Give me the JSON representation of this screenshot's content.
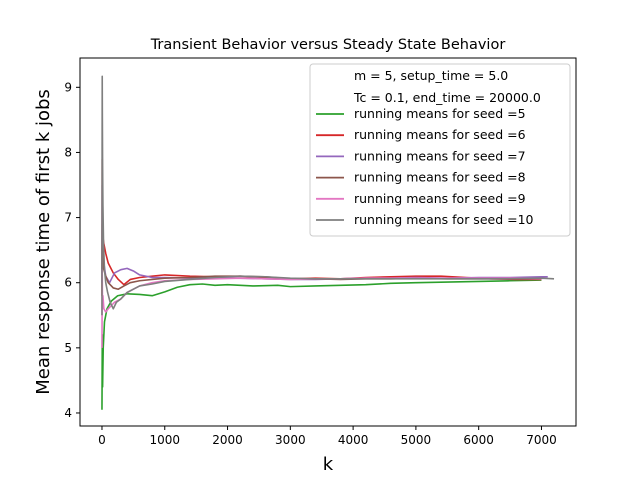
{
  "chart_data": {
    "type": "line",
    "title": "Transient Behavior versus Steady State Behavior",
    "xlabel": "k",
    "ylabel": "Mean response time of first k jobs",
    "xlim": [
      -350,
      7550
    ],
    "ylim": [
      3.8,
      9.45
    ],
    "xticks": [
      0,
      1000,
      2000,
      3000,
      4000,
      5000,
      6000,
      7000
    ],
    "yticks": [
      4,
      5,
      6,
      7,
      8,
      9
    ],
    "grid": false,
    "legend_position": "top-right",
    "legend_header": [
      "m = 5, setup_time = 5.0",
      "Tc = 0.1, end_time = 20000.0"
    ],
    "series": [
      {
        "name": "running means for seed =5",
        "color": "#2ca02c",
        "points": [
          [
            0,
            4.05
          ],
          [
            5,
            5.2
          ],
          [
            10,
            4.4
          ],
          [
            20,
            5.0
          ],
          [
            40,
            5.4
          ],
          [
            80,
            5.6
          ],
          [
            150,
            5.72
          ],
          [
            250,
            5.8
          ],
          [
            400,
            5.83
          ],
          [
            600,
            5.82
          ],
          [
            800,
            5.8
          ],
          [
            1000,
            5.86
          ],
          [
            1200,
            5.93
          ],
          [
            1400,
            5.97
          ],
          [
            1600,
            5.98
          ],
          [
            1800,
            5.96
          ],
          [
            2000,
            5.97
          ],
          [
            2400,
            5.95
          ],
          [
            2800,
            5.96
          ],
          [
            3000,
            5.94
          ],
          [
            3400,
            5.95
          ],
          [
            3800,
            5.96
          ],
          [
            4200,
            5.97
          ],
          [
            4600,
            5.99
          ],
          [
            5000,
            6.0
          ],
          [
            5500,
            6.01
          ],
          [
            6000,
            6.02
          ],
          [
            6500,
            6.03
          ],
          [
            7000,
            6.04
          ]
        ]
      },
      {
        "name": "running means for seed =6",
        "color": "#d62728",
        "points": [
          [
            0,
            5.8
          ],
          [
            4,
            7.9
          ],
          [
            8,
            7.0
          ],
          [
            15,
            6.7
          ],
          [
            30,
            6.6
          ],
          [
            60,
            6.45
          ],
          [
            100,
            6.3
          ],
          [
            180,
            6.15
          ],
          [
            260,
            6.05
          ],
          [
            350,
            5.97
          ],
          [
            450,
            6.05
          ],
          [
            600,
            6.08
          ],
          [
            800,
            6.1
          ],
          [
            1000,
            6.12
          ],
          [
            1400,
            6.1
          ],
          [
            1800,
            6.09
          ],
          [
            2200,
            6.1
          ],
          [
            2600,
            6.08
          ],
          [
            3000,
            6.06
          ],
          [
            3400,
            6.07
          ],
          [
            3800,
            6.06
          ],
          [
            4200,
            6.08
          ],
          [
            4600,
            6.09
          ],
          [
            5000,
            6.1
          ],
          [
            5400,
            6.1
          ],
          [
            5800,
            6.08
          ],
          [
            6200,
            6.06
          ],
          [
            6600,
            6.05
          ],
          [
            7000,
            6.05
          ]
        ]
      },
      {
        "name": "running means for seed =7",
        "color": "#9467bd",
        "points": [
          [
            0,
            6.0
          ],
          [
            4,
            7.5
          ],
          [
            8,
            7.0
          ],
          [
            15,
            6.5
          ],
          [
            30,
            6.3
          ],
          [
            60,
            6.1
          ],
          [
            120,
            6.0
          ],
          [
            200,
            6.15
          ],
          [
            300,
            6.2
          ],
          [
            400,
            6.22
          ],
          [
            500,
            6.18
          ],
          [
            600,
            6.12
          ],
          [
            800,
            6.08
          ],
          [
            1000,
            6.08
          ],
          [
            1400,
            6.07
          ],
          [
            1800,
            6.08
          ],
          [
            2200,
            6.07
          ],
          [
            2600,
            6.06
          ],
          [
            3000,
            6.05
          ],
          [
            3400,
            6.05
          ],
          [
            3800,
            6.06
          ],
          [
            4200,
            6.07
          ],
          [
            4600,
            6.07
          ],
          [
            5000,
            6.08
          ],
          [
            5500,
            6.07
          ],
          [
            6000,
            6.08
          ],
          [
            6500,
            6.08
          ],
          [
            7000,
            6.09
          ],
          [
            7100,
            6.09
          ]
        ]
      },
      {
        "name": "running means for seed =8",
        "color": "#8c564b",
        "points": [
          [
            0,
            6.2
          ],
          [
            4,
            6.9
          ],
          [
            8,
            6.5
          ],
          [
            15,
            6.35
          ],
          [
            30,
            6.2
          ],
          [
            60,
            6.1
          ],
          [
            100,
            6.0
          ],
          [
            180,
            5.92
          ],
          [
            260,
            5.9
          ],
          [
            350,
            5.95
          ],
          [
            450,
            6.0
          ],
          [
            600,
            6.03
          ],
          [
            800,
            6.05
          ],
          [
            1000,
            6.07
          ],
          [
            1400,
            6.08
          ],
          [
            1800,
            6.1
          ],
          [
            2200,
            6.1
          ],
          [
            2600,
            6.09
          ],
          [
            3000,
            6.06
          ],
          [
            3400,
            6.06
          ],
          [
            3800,
            6.05
          ],
          [
            4200,
            6.06
          ],
          [
            4600,
            6.06
          ],
          [
            5000,
            6.07
          ],
          [
            5500,
            6.06
          ],
          [
            6000,
            6.06
          ],
          [
            6500,
            6.06
          ],
          [
            7000,
            6.06
          ]
        ]
      },
      {
        "name": "running means for seed =9",
        "color": "#e377c2",
        "points": [
          [
            0,
            5.0
          ],
          [
            4,
            6.2
          ],
          [
            8,
            5.6
          ],
          [
            15,
            5.8
          ],
          [
            30,
            5.6
          ],
          [
            60,
            5.55
          ],
          [
            100,
            5.6
          ],
          [
            150,
            5.65
          ],
          [
            200,
            5.7
          ],
          [
            300,
            5.75
          ],
          [
            400,
            5.85
          ],
          [
            500,
            5.9
          ],
          [
            600,
            5.95
          ],
          [
            800,
            6.0
          ],
          [
            1000,
            6.03
          ],
          [
            1400,
            6.05
          ],
          [
            1800,
            6.06
          ],
          [
            2200,
            6.07
          ],
          [
            2600,
            6.06
          ],
          [
            3000,
            6.05
          ],
          [
            3400,
            6.06
          ],
          [
            3800,
            6.06
          ],
          [
            4200,
            6.07
          ],
          [
            4600,
            6.07
          ],
          [
            5000,
            6.07
          ],
          [
            5500,
            6.07
          ],
          [
            6000,
            6.07
          ],
          [
            6500,
            6.07
          ],
          [
            7000,
            6.06
          ]
        ]
      },
      {
        "name": "running means for seed =10",
        "color": "#7f7f7f",
        "points": [
          [
            0,
            5.5
          ],
          [
            2,
            8.0
          ],
          [
            4,
            9.17
          ],
          [
            6,
            8.6
          ],
          [
            10,
            7.8
          ],
          [
            15,
            7.2
          ],
          [
            25,
            6.6
          ],
          [
            40,
            6.2
          ],
          [
            60,
            6.0
          ],
          [
            90,
            5.85
          ],
          [
            130,
            5.7
          ],
          [
            180,
            5.6
          ],
          [
            230,
            5.7
          ],
          [
            300,
            5.75
          ],
          [
            400,
            5.85
          ],
          [
            500,
            5.9
          ],
          [
            600,
            5.95
          ],
          [
            800,
            5.98
          ],
          [
            1000,
            6.02
          ],
          [
            1400,
            6.05
          ],
          [
            1800,
            6.08
          ],
          [
            2200,
            6.1
          ],
          [
            2600,
            6.09
          ],
          [
            3000,
            6.07
          ],
          [
            3400,
            6.06
          ],
          [
            3800,
            6.06
          ],
          [
            4200,
            6.06
          ],
          [
            4600,
            6.06
          ],
          [
            5000,
            6.06
          ],
          [
            5500,
            6.06
          ],
          [
            6000,
            6.06
          ],
          [
            6500,
            6.06
          ],
          [
            7000,
            6.07
          ],
          [
            7200,
            6.06
          ]
        ]
      }
    ]
  }
}
